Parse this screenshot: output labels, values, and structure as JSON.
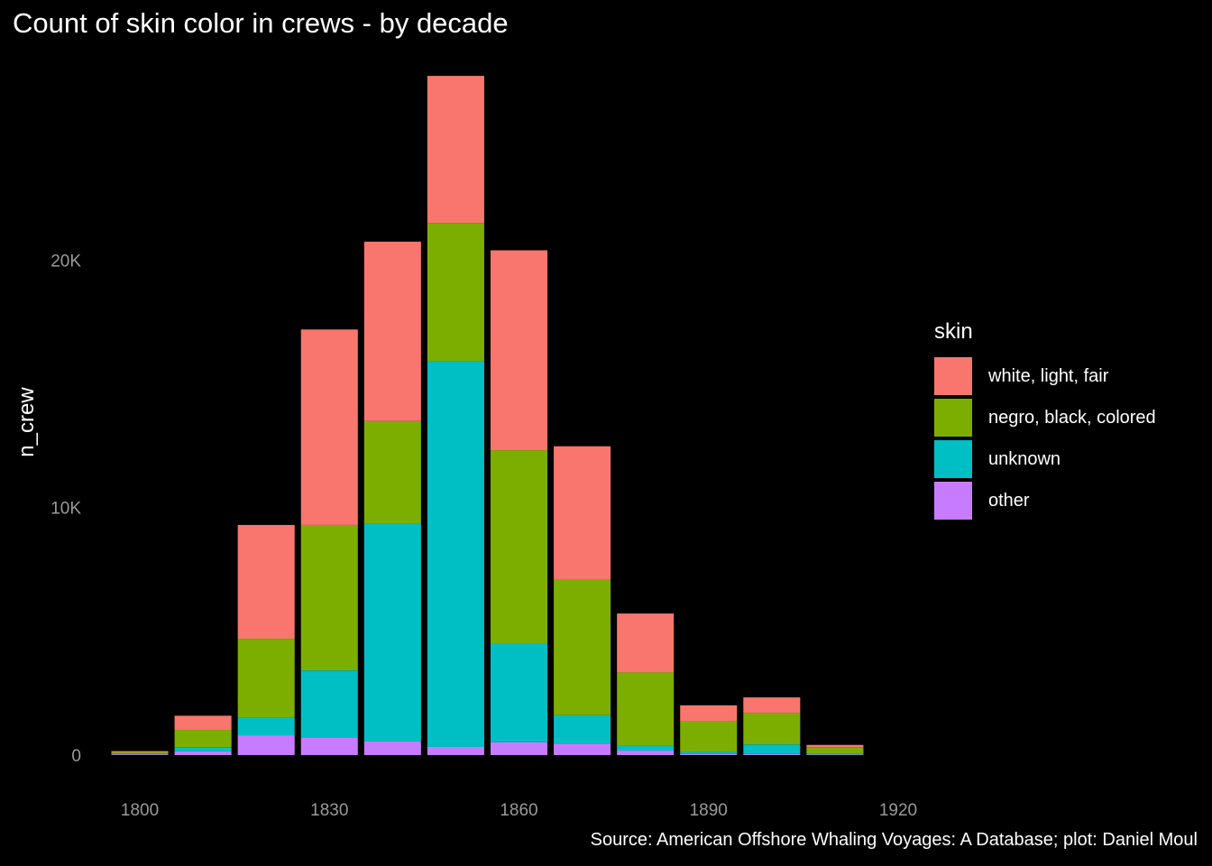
{
  "chart_data": {
    "type": "bar",
    "stacked": true,
    "title": "Count of skin color in crews - by decade",
    "xlabel": "",
    "ylabel": "n_crew",
    "caption": "Source: American Offshore Whaling Voyages: A Database; plot: Daniel Moul",
    "legend_title": "skin",
    "legend_position": "right",
    "grid": false,
    "xlim": [
      1795,
      1922
    ],
    "ylim": [
      0,
      27600
    ],
    "x_ticks": [
      1800,
      1830,
      1860,
      1890,
      1920
    ],
    "y_ticks": [
      {
        "value": 0,
        "label": "0"
      },
      {
        "value": 10000,
        "label": "10K"
      },
      {
        "value": 20000,
        "label": "20K"
      }
    ],
    "x": [
      1800,
      1810,
      1820,
      1830,
      1840,
      1850,
      1860,
      1870,
      1880,
      1890,
      1900,
      1910
    ],
    "series": [
      {
        "name": "other",
        "color": "#C77CFF",
        "values": [
          30,
          150,
          800,
          720,
          550,
          330,
          520,
          460,
          180,
          40,
          40,
          20
        ]
      },
      {
        "name": "unknown",
        "color": "#00BFC4",
        "values": [
          20,
          170,
          700,
          2700,
          8800,
          15600,
          4000,
          1150,
          200,
          90,
          390,
          30
        ]
      },
      {
        "name": "negro, black, colored",
        "color": "#7CAE00",
        "values": [
          60,
          700,
          3200,
          5880,
          4150,
          5570,
          7800,
          5500,
          2960,
          1240,
          1270,
          270
        ]
      },
      {
        "name": "white, light, fair",
        "color": "#F8766D",
        "values": [
          50,
          570,
          4600,
          7900,
          7250,
          5950,
          8080,
          5370,
          2380,
          640,
          630,
          90
        ]
      }
    ],
    "legend_order": [
      "white, light, fair",
      "negro, black, colored",
      "unknown",
      "other"
    ]
  }
}
